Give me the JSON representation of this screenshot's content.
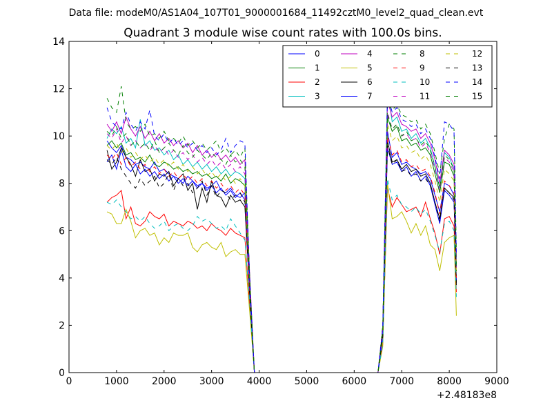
{
  "chart_data": {
    "type": "line",
    "suptitle": "Data file: modeM0/AS1A04_107T01_9000001684_11492cztM0_level2_quad_clean.evt",
    "title": "Quadrant 3 module wise count rates with 100.0s bins.",
    "xlabel": "",
    "ylabel": "",
    "x_offset_label": "+2.48183e8",
    "xlim": [
      0,
      9000
    ],
    "ylim": [
      0,
      14
    ],
    "xticks": [
      0,
      1000,
      2000,
      3000,
      4000,
      5000,
      6000,
      7000,
      8000,
      9000
    ],
    "yticks": [
      0,
      2,
      4,
      6,
      8,
      10,
      12,
      14
    ],
    "legend_location": "upper-right",
    "legend_columns": 4,
    "colors": {
      "blue": "#0000ff",
      "green": "#007f00",
      "red": "#ff0000",
      "cyan": "#00bfbf",
      "magenta": "#bf00bf",
      "olive": "#bfbf00",
      "black": "#000000"
    },
    "x": [
      800,
      900,
      1000,
      1100,
      1200,
      1300,
      1400,
      1500,
      1600,
      1700,
      1800,
      1900,
      2000,
      2100,
      2200,
      2300,
      2400,
      2500,
      2600,
      2700,
      2800,
      2900,
      3000,
      3100,
      3200,
      3300,
      3400,
      3500,
      3600,
      3700,
      3800,
      3900,
      4000,
      6500,
      6600,
      6700,
      6800,
      6900,
      7000,
      7100,
      7200,
      7300,
      7400,
      7500,
      7600,
      7700,
      7800,
      7900,
      8000,
      8100,
      8150
    ],
    "series": [
      {
        "name": "0",
        "color": "blue",
        "dash": false,
        "values": [
          9.8,
          9.5,
          9.3,
          9.6,
          9.1,
          9.0,
          8.8,
          8.9,
          8.7,
          8.6,
          8.9,
          8.5,
          8.6,
          8.4,
          8.3,
          8.2,
          8.0,
          8.3,
          8.1,
          7.9,
          8.0,
          7.8,
          7.9,
          8.1,
          7.7,
          7.6,
          7.8,
          7.5,
          7.4,
          7.6,
          3.5,
          0,
          0,
          0,
          1.6,
          10.2,
          9.1,
          9.3,
          8.8,
          8.9,
          8.7,
          8.6,
          8.4,
          8.5,
          8.2,
          7.5,
          6.8,
          8.0,
          7.9,
          7.5,
          4.5
        ]
      },
      {
        "name": "1",
        "color": "green",
        "dash": false,
        "values": [
          9.6,
          9.8,
          9.5,
          9.7,
          9.2,
          9.3,
          9.0,
          9.1,
          8.9,
          9.2,
          8.8,
          8.7,
          8.9,
          8.8,
          8.6,
          8.7,
          8.5,
          8.6,
          8.4,
          8.5,
          8.3,
          8.4,
          8.2,
          8.3,
          8.1,
          8.4,
          8.0,
          8.2,
          8.1,
          7.9,
          3.6,
          0,
          0,
          0,
          1.7,
          10.8,
          10.2,
          10.4,
          9.8,
          9.9,
          9.6,
          9.7,
          9.4,
          9.5,
          9.2,
          8.4,
          7.6,
          8.9,
          8.8,
          8.3,
          4.6
        ]
      },
      {
        "name": "2",
        "color": "red",
        "dash": false,
        "values": [
          7.2,
          7.4,
          7.5,
          7.7,
          6.5,
          7.0,
          6.3,
          6.2,
          6.4,
          6.8,
          6.6,
          6.5,
          6.7,
          6.2,
          6.4,
          6.3,
          6.2,
          6.4,
          6.3,
          6.1,
          6.2,
          6.0,
          6.3,
          6.1,
          6.0,
          5.8,
          6.1,
          5.9,
          5.8,
          5.7,
          2.8,
          0,
          0,
          0,
          1.2,
          7.8,
          7.0,
          7.4,
          7.1,
          6.8,
          6.9,
          7.0,
          6.6,
          7.2,
          6.5,
          5.9,
          5.0,
          6.5,
          6.6,
          6.2,
          3.4
        ]
      },
      {
        "name": "3",
        "color": "cyan",
        "dash": false,
        "values": [
          9.9,
          10.3,
          10.1,
          10.4,
          9.7,
          9.9,
          9.5,
          10.7,
          9.6,
          9.8,
          9.4,
          9.5,
          9.2,
          9.4,
          9.0,
          9.2,
          8.8,
          9.0,
          8.7,
          8.9,
          8.6,
          8.8,
          8.5,
          8.7,
          8.4,
          8.6,
          8.3,
          8.5,
          8.4,
          8.2,
          3.8,
          0,
          0,
          0,
          1.8,
          12.0,
          10.6,
          10.8,
          10.2,
          10.3,
          9.9,
          10.1,
          9.7,
          9.9,
          9.5,
          8.7,
          7.8,
          9.3,
          9.1,
          8.6,
          4.8
        ]
      },
      {
        "name": "4",
        "color": "magenta",
        "dash": false,
        "values": [
          10.5,
          10.2,
          10.6,
          10.1,
          10.8,
          10.3,
          10.0,
          10.4,
          9.9,
          10.2,
          9.8,
          10.1,
          9.7,
          9.9,
          9.6,
          9.8,
          9.5,
          9.7,
          9.3,
          9.6,
          9.2,
          9.4,
          9.1,
          9.3,
          9.0,
          9.2,
          8.9,
          9.1,
          8.8,
          9.0,
          4.2,
          0,
          0,
          0,
          1.9,
          11.5,
          10.8,
          11.0,
          10.5,
          10.4,
          10.2,
          10.3,
          9.9,
          10.1,
          9.7,
          9.0,
          8.0,
          9.4,
          9.2,
          8.8,
          4.9
        ]
      },
      {
        "name": "5",
        "color": "olive",
        "dash": false,
        "values": [
          6.8,
          6.7,
          6.3,
          6.3,
          6.9,
          6.4,
          5.7,
          6.0,
          6.1,
          5.8,
          5.9,
          5.4,
          5.7,
          5.5,
          5.9,
          5.8,
          5.8,
          5.9,
          5.3,
          5.1,
          5.4,
          5.5,
          5.3,
          5.2,
          5.5,
          4.9,
          5.1,
          5.2,
          5.0,
          5.0,
          2.6,
          0,
          0,
          0,
          1.1,
          8.0,
          6.5,
          6.6,
          6.8,
          6.4,
          5.9,
          6.3,
          5.8,
          6.2,
          5.4,
          5.2,
          4.3,
          5.5,
          5.7,
          5.8,
          2.4
        ]
      },
      {
        "name": "6",
        "color": "black",
        "dash": false,
        "values": [
          9.4,
          8.6,
          8.9,
          9.5,
          9.1,
          8.8,
          8.3,
          9.0,
          8.5,
          8.6,
          8.1,
          8.4,
          8.3,
          8.5,
          7.9,
          8.2,
          8.4,
          7.7,
          8.0,
          6.9,
          7.8,
          7.2,
          8.1,
          7.5,
          7.4,
          7.0,
          7.5,
          7.2,
          7.3,
          7.0,
          3.4,
          0,
          0,
          0,
          1.6,
          9.8,
          8.9,
          9.0,
          8.6,
          8.8,
          8.5,
          8.6,
          8.3,
          8.4,
          8.0,
          7.2,
          6.5,
          7.8,
          7.6,
          7.4,
          3.7
        ]
      },
      {
        "name": "7",
        "color": "blue",
        "dash": false,
        "values": [
          8.9,
          9.2,
          8.6,
          9.4,
          8.7,
          8.5,
          8.8,
          8.4,
          8.6,
          8.3,
          8.5,
          8.2,
          8.4,
          8.1,
          8.3,
          8.0,
          8.2,
          7.9,
          8.1,
          7.8,
          8.0,
          7.7,
          7.9,
          7.6,
          7.8,
          7.5,
          7.7,
          7.4,
          7.6,
          7.3,
          3.4,
          0,
          0,
          0,
          1.5,
          9.5,
          8.8,
          8.9,
          8.5,
          8.7,
          8.3,
          8.5,
          8.1,
          8.3,
          7.9,
          7.1,
          6.3,
          7.7,
          7.5,
          7.2,
          3.9
        ]
      },
      {
        "name": "8",
        "color": "green",
        "dash": true,
        "values": [
          11.6,
          11.2,
          11.0,
          12.1,
          10.6,
          10.3,
          10.4,
          10.2,
          10.5,
          10.0,
          10.1,
          9.9,
          10.2,
          9.8,
          9.9,
          9.7,
          10.0,
          9.6,
          9.8,
          9.5,
          9.7,
          9.4,
          9.6,
          9.8,
          9.3,
          9.5,
          9.2,
          9.4,
          9.1,
          9.5,
          4.1,
          0,
          0,
          0,
          2.0,
          11.4,
          11.1,
          11.3,
          10.9,
          10.8,
          10.6,
          10.7,
          10.3,
          10.5,
          10.1,
          9.3,
          8.4,
          9.9,
          10.5,
          10.3,
          5.2
        ]
      },
      {
        "name": "9",
        "color": "red",
        "dash": true,
        "values": [
          9.2,
          9.0,
          9.3,
          8.8,
          9.1,
          8.7,
          8.9,
          8.6,
          8.8,
          8.5,
          8.7,
          8.4,
          8.6,
          8.3,
          8.5,
          8.2,
          8.4,
          8.1,
          8.3,
          8.0,
          8.2,
          7.9,
          8.1,
          7.8,
          8.0,
          7.7,
          7.9,
          7.6,
          7.8,
          7.5,
          3.5,
          0,
          0,
          0,
          1.6,
          10.0,
          9.2,
          9.4,
          8.9,
          9.0,
          8.7,
          8.8,
          8.5,
          8.6,
          8.3,
          7.6,
          6.7,
          8.1,
          7.9,
          7.6,
          4.0
        ]
      },
      {
        "name": "10",
        "color": "cyan",
        "dash": true,
        "values": [
          7.2,
          7.1,
          7.3,
          7.0,
          6.8,
          6.5,
          6.6,
          6.4,
          6.6,
          6.3,
          6.1,
          6.2,
          6.4,
          6.0,
          6.2,
          6.3,
          6.1,
          6.0,
          6.2,
          6.6,
          6.4,
          6.5,
          6.3,
          6.1,
          6.2,
          6.0,
          6.5,
          6.2,
          5.9,
          5.6,
          3.0,
          0,
          0,
          0,
          1.2,
          8.2,
          7.3,
          7.5,
          7.1,
          7.0,
          6.8,
          7.0,
          6.7,
          6.9,
          6.4,
          5.8,
          5.1,
          6.3,
          6.4,
          6.0,
          3.2
        ]
      },
      {
        "name": "11",
        "color": "magenta",
        "dash": true,
        "values": [
          10.1,
          9.9,
          10.3,
          9.7,
          10.0,
          9.6,
          9.8,
          9.5,
          9.7,
          9.4,
          9.6,
          9.3,
          9.5,
          9.2,
          9.4,
          9.1,
          9.3,
          9.0,
          9.2,
          8.9,
          9.1,
          8.8,
          9.0,
          8.7,
          8.9,
          8.6,
          8.8,
          8.5,
          8.7,
          8.4,
          3.9,
          0,
          0,
          0,
          1.8,
          11.0,
          10.3,
          10.5,
          10.0,
          10.1,
          9.8,
          9.9,
          9.5,
          9.7,
          9.3,
          8.6,
          7.7,
          9.1,
          8.9,
          8.5,
          4.4
        ]
      },
      {
        "name": "12",
        "color": "olive",
        "dash": true,
        "values": [
          9.6,
          9.4,
          9.7,
          9.3,
          9.5,
          9.1,
          9.3,
          9.0,
          9.2,
          8.9,
          9.1,
          8.8,
          9.0,
          8.7,
          8.9,
          8.6,
          8.8,
          8.5,
          8.7,
          8.4,
          8.6,
          8.3,
          8.5,
          8.2,
          8.4,
          8.1,
          8.3,
          8.0,
          8.2,
          7.9,
          3.7,
          0,
          0,
          0,
          1.7,
          10.5,
          9.8,
          10.0,
          9.5,
          9.6,
          9.3,
          9.4,
          9.0,
          9.2,
          8.8,
          8.1,
          7.2,
          8.6,
          8.4,
          8.1,
          4.2
        ]
      },
      {
        "name": "13",
        "color": "black",
        "dash": true,
        "values": [
          9.0,
          8.8,
          9.1,
          8.6,
          8.3,
          8.0,
          7.8,
          8.2,
          7.9,
          8.1,
          8.3,
          7.8,
          8.0,
          8.4,
          7.7,
          8.2,
          7.9,
          8.0,
          7.6,
          7.8,
          8.1,
          7.5,
          7.9,
          7.4,
          7.7,
          7.6,
          7.3,
          7.5,
          7.6,
          7.2,
          3.3,
          0,
          0,
          0,
          1.5,
          9.6,
          8.8,
          9.0,
          8.5,
          8.6,
          8.3,
          8.4,
          8.1,
          8.2,
          7.9,
          7.2,
          6.4,
          7.8,
          7.6,
          7.3,
          3.8
        ]
      },
      {
        "name": "14",
        "color": "blue",
        "dash": true,
        "values": [
          11.2,
          10.6,
          10.4,
          10.3,
          11.0,
          10.5,
          10.2,
          10.6,
          10.3,
          11.1,
          10.0,
          9.8,
          10.1,
          9.7,
          9.9,
          9.6,
          9.8,
          9.5,
          9.7,
          9.4,
          9.6,
          9.3,
          9.5,
          9.2,
          9.4,
          9.9,
          9.3,
          9.6,
          9.8,
          9.7,
          4.0,
          0,
          0,
          0,
          1.9,
          11.8,
          11.0,
          11.2,
          10.7,
          10.6,
          10.4,
          10.5,
          10.1,
          10.3,
          9.9,
          9.1,
          8.2,
          10.6,
          10.5,
          10.2,
          5.0
        ]
      },
      {
        "name": "15",
        "color": "green",
        "dash": true,
        "values": [
          10.2,
          10.0,
          10.4,
          9.9,
          10.1,
          9.6,
          9.8,
          9.5,
          9.7,
          9.4,
          9.8,
          9.3,
          9.5,
          9.7,
          9.4,
          9.2,
          9.6,
          9.3,
          9.1,
          9.4,
          9.2,
          9.0,
          9.3,
          9.1,
          9.0,
          8.8,
          9.2,
          8.9,
          9.0,
          8.7,
          4.0,
          0,
          0,
          0,
          1.8,
          10.9,
          10.3,
          10.5,
          10.0,
          10.2,
          9.8,
          9.9,
          9.6,
          9.8,
          9.4,
          8.7,
          7.8,
          9.2,
          9.0,
          8.6,
          4.3
        ]
      }
    ]
  }
}
